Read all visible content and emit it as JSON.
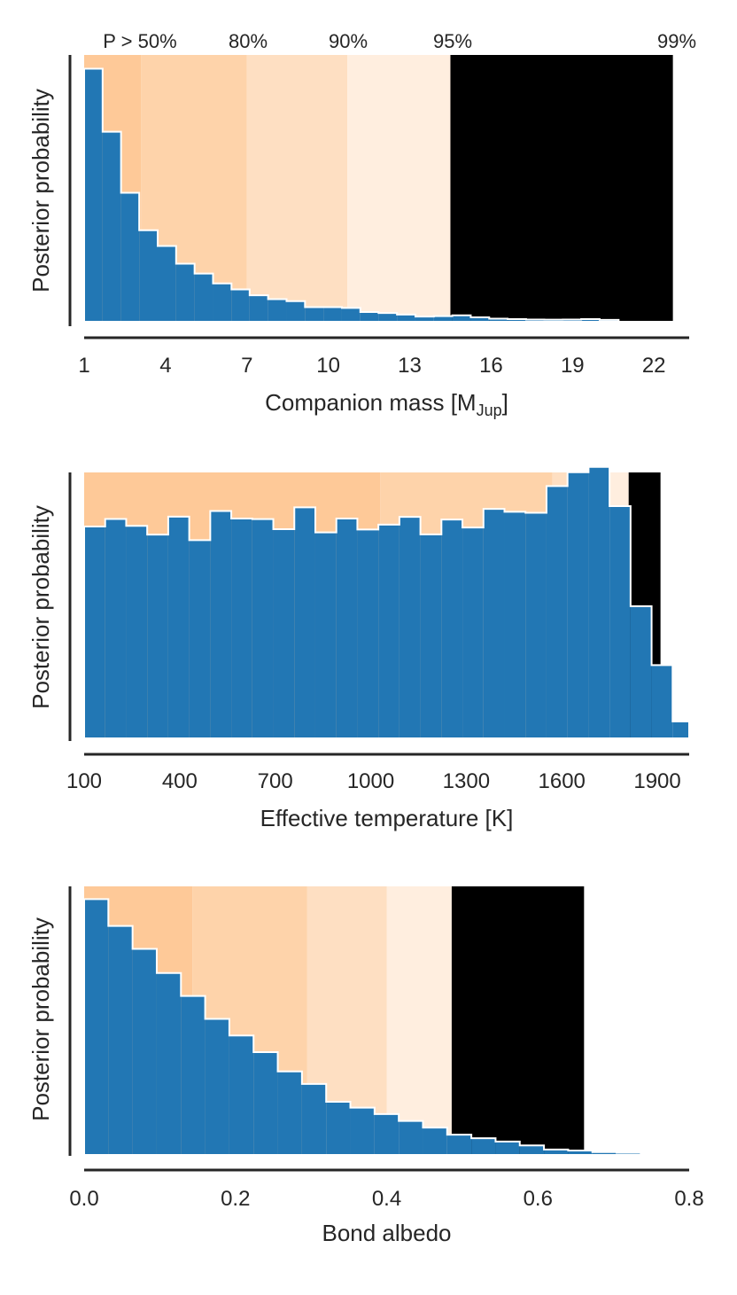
{
  "figure": {
    "colors": {
      "hist": "#2277b4",
      "hist_edge": "#ffffff",
      "bands": [
        "#fec998",
        "#fed3aa",
        "#fedfc2",
        "#ffeedf"
      ],
      "axis": "#262626"
    }
  },
  "chart_data": [
    {
      "type": "bar",
      "title": "",
      "xlabel": "Companion mass [M",
      "xlabel_sub": "Jup",
      "xlabel_tail": "]",
      "ylabel": "Posterior probability",
      "xlim": [
        1,
        23.3
      ],
      "ylim": [
        0,
        0.135
      ],
      "xticks": [
        1,
        4,
        7,
        10,
        13,
        16,
        19,
        22
      ],
      "xtick_labels": [
        "1",
        "4",
        "7",
        "10",
        "13",
        "16",
        "19",
        "22"
      ],
      "band_edges": [
        1,
        3.1,
        7.0,
        10.7,
        14.5,
        22.7
      ],
      "band_labels": [
        "P > 50%",
        "80%",
        "90%",
        "95%",
        "99%"
      ],
      "bin_edges": [
        1,
        1.68,
        2.36,
        3.03,
        3.71,
        4.39,
        5.07,
        5.75,
        6.43,
        7.1,
        7.78,
        8.46,
        9.14,
        9.82,
        10.5,
        11.18,
        11.85,
        12.53,
        13.21,
        13.89,
        14.57,
        15.25,
        15.93,
        16.61,
        17.29,
        17.96,
        18.64,
        19.32,
        20.0,
        20.7
      ],
      "values": [
        0.128,
        0.096,
        0.065,
        0.046,
        0.038,
        0.029,
        0.024,
        0.019,
        0.016,
        0.013,
        0.011,
        0.01,
        0.007,
        0.007,
        0.0066,
        0.0045,
        0.004,
        0.0032,
        0.0022,
        0.0024,
        0.0028,
        0.0018,
        0.0011,
        0.0009,
        0.0007,
        0.0006,
        0.0007,
        0.0009,
        0.0005
      ]
    },
    {
      "type": "bar",
      "title": "",
      "xlabel": "Effective temperature [K]",
      "ylabel": "Posterior probability",
      "xlim": [
        100,
        2000
      ],
      "ylim": [
        0,
        0.0013
      ],
      "xticks": [
        100,
        400,
        700,
        1000,
        1300,
        1600,
        1900
      ],
      "xtick_labels": [
        "100",
        "400",
        "700",
        "1000",
        "1300",
        "1600",
        "1900"
      ],
      "band_edges": [
        100,
        1030,
        1570,
        1730,
        1810,
        1910
      ],
      "bin_edges": [
        100,
        166,
        232,
        298,
        364,
        430,
        496,
        562,
        628,
        694,
        760,
        826,
        892,
        958,
        1024,
        1090,
        1156,
        1222,
        1288,
        1354,
        1420,
        1486,
        1552,
        1618,
        1684,
        1750,
        1816,
        1882,
        1948,
        2000
      ],
      "values": [
        0.001035,
        0.001072,
        0.001038,
        0.000995,
        0.001083,
        0.000968,
        0.001111,
        0.001074,
        0.001071,
        0.001022,
        0.001129,
        0.001006,
        0.001074,
        0.00102,
        0.001044,
        0.001082,
        0.000996,
        0.001069,
        0.00103,
        0.001121,
        0.001107,
        0.001102,
        0.001233,
        0.001301,
        0.001327,
        0.001135,
        0.000644,
        0.000355,
        7.9e-05
      ]
    },
    {
      "type": "bar",
      "title": "",
      "xlabel": "Bond albedo",
      "ylabel": "Posterior probability",
      "xlim": [
        0.0,
        0.8
      ],
      "ylim": [
        0,
        0.105
      ],
      "xticks": [
        0.0,
        0.2,
        0.4,
        0.6,
        0.8
      ],
      "xtick_labels": [
        "0.0",
        "0.2",
        "0.4",
        "0.6",
        "0.8"
      ],
      "band_edges": [
        0.0,
        0.143,
        0.295,
        0.4,
        0.486,
        0.661
      ],
      "bin_edges": [
        0.0,
        0.032,
        0.064,
        0.096,
        0.128,
        0.16,
        0.192,
        0.224,
        0.256,
        0.288,
        0.32,
        0.352,
        0.384,
        0.416,
        0.448,
        0.48,
        0.512,
        0.544,
        0.576,
        0.608,
        0.64,
        0.672,
        0.704,
        0.736,
        0.77
      ],
      "values": [
        0.1,
        0.0895,
        0.0805,
        0.071,
        0.062,
        0.053,
        0.0465,
        0.04,
        0.0324,
        0.0275,
        0.0205,
        0.0182,
        0.0157,
        0.013,
        0.0104,
        0.0076,
        0.0062,
        0.0049,
        0.0034,
        0.0018,
        0.0014,
        0.0008,
        0.0005,
        0.0003
      ]
    }
  ]
}
